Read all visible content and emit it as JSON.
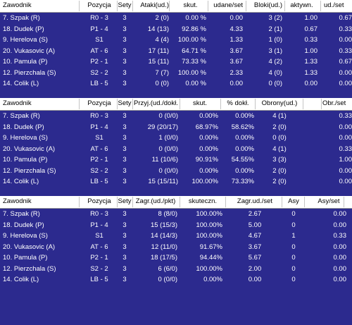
{
  "tables": [
    {
      "columns": [
        "Zawodnik",
        "Pozycja",
        "Sety",
        "Ataki(ud.)",
        "skut.",
        "udane/set",
        "Bloki(ud.)",
        "aktywn.",
        "ud./set"
      ],
      "rows": [
        [
          "7. Szpak (R)",
          "R0 - 3",
          "3",
          "2 (0)",
          "0.00 %",
          "0.00",
          "3 (2)",
          "1.00",
          "0.67"
        ],
        [
          "18. Dudek (P)",
          "P1 - 4",
          "3",
          "14 (13)",
          "92.86 %",
          "4.33",
          "2 (1)",
          "0.67",
          "0.33"
        ],
        [
          "9. Herelova (S)",
          "S1",
          "3",
          "4 (4)",
          "100.00 %",
          "1.33",
          "1 (0)",
          "0.33",
          "0.00"
        ],
        [
          "20. Vukasovic (A)",
          "AT - 6",
          "3",
          "17 (11)",
          "64.71 %",
          "3.67",
          "3 (1)",
          "1.00",
          "0.33"
        ],
        [
          "10. Pamula (P)",
          "P2 - 1",
          "3",
          "15 (11)",
          "73.33 %",
          "3.67",
          "4 (2)",
          "1.33",
          "0.67"
        ],
        [
          "12. Pierzchala (S)",
          "S2 - 2",
          "3",
          "7 (7)",
          "100.00 %",
          "2.33",
          "4 (0)",
          "1.33",
          "0.00"
        ],
        [
          "14. Colik (L)",
          "LB - 5",
          "3",
          "0 (0)",
          "0.00 %",
          "0.00",
          "0 (0)",
          "0.00",
          "0.00"
        ]
      ]
    },
    {
      "columns": [
        "Zawodnik",
        "Pozycja",
        "Sety",
        "Przyj.(ud./dokł.)",
        "skut.",
        "% dokł.",
        "Obrony(ud.)",
        "Obr./set"
      ],
      "rows": [
        [
          "7. Szpak (R)",
          "R0 - 3",
          "3",
          "0 (0/0)",
          "0.00%",
          "0.00%",
          "4 (1)",
          "0.33"
        ],
        [
          "18. Dudek (P)",
          "P1 - 4",
          "3",
          "29 (20/17)",
          "68.97%",
          "58.62%",
          "2 (0)",
          "0.00"
        ],
        [
          "9. Herelova (S)",
          "S1",
          "3",
          "1 (0/0)",
          "0.00%",
          "0.00%",
          "0 (0)",
          "0.00"
        ],
        [
          "20. Vukasovic (A)",
          "AT - 6",
          "3",
          "0 (0/0)",
          "0.00%",
          "0.00%",
          "4 (1)",
          "0.33"
        ],
        [
          "10. Pamula (P)",
          "P2 - 1",
          "3",
          "11 (10/6)",
          "90.91%",
          "54.55%",
          "3 (3)",
          "1.00"
        ],
        [
          "12. Pierzchala (S)",
          "S2 - 2",
          "3",
          "0 (0/0)",
          "0.00%",
          "0.00%",
          "2 (0)",
          "0.00"
        ],
        [
          "14. Colik (L)",
          "LB - 5",
          "3",
          "15 (15/11)",
          "100.00%",
          "73.33%",
          "2 (0)",
          "0.00"
        ]
      ]
    },
    {
      "columns": [
        "Zawodnik",
        "Pozycja",
        "Sety",
        "Zagr.(ud./pkt)",
        "skuteczn.",
        "Zagr.ud./set",
        "Asy",
        "Asy/set"
      ],
      "rows": [
        [
          "7. Szpak (R)",
          "R0 - 3",
          "3",
          "8 (8/0)",
          "100.00%",
          "2.67",
          "0",
          "0.00"
        ],
        [
          "18. Dudek (P)",
          "P1 - 4",
          "3",
          "15 (15/3)",
          "100.00%",
          "5.00",
          "0",
          "0.00"
        ],
        [
          "9. Herelova (S)",
          "S1",
          "3",
          "14 (14/3)",
          "100.00%",
          "4.67",
          "1",
          "0.33"
        ],
        [
          "20. Vukasovic (A)",
          "AT - 6",
          "3",
          "12 (11/0)",
          "91.67%",
          "3.67",
          "0",
          "0.00"
        ],
        [
          "10. Pamula (P)",
          "P2 - 1",
          "3",
          "18 (17/5)",
          "94.44%",
          "5.67",
          "0",
          "0.00"
        ],
        [
          "12. Pierzchala (S)",
          "S2 - 2",
          "3",
          "6 (6/0)",
          "100.00%",
          "2.00",
          "0",
          "0.00"
        ],
        [
          "14. Colik (L)",
          "LB - 5",
          "3",
          "0 (0/0)",
          "0.00%",
          "0.00",
          "0",
          "0.00"
        ]
      ]
    }
  ]
}
